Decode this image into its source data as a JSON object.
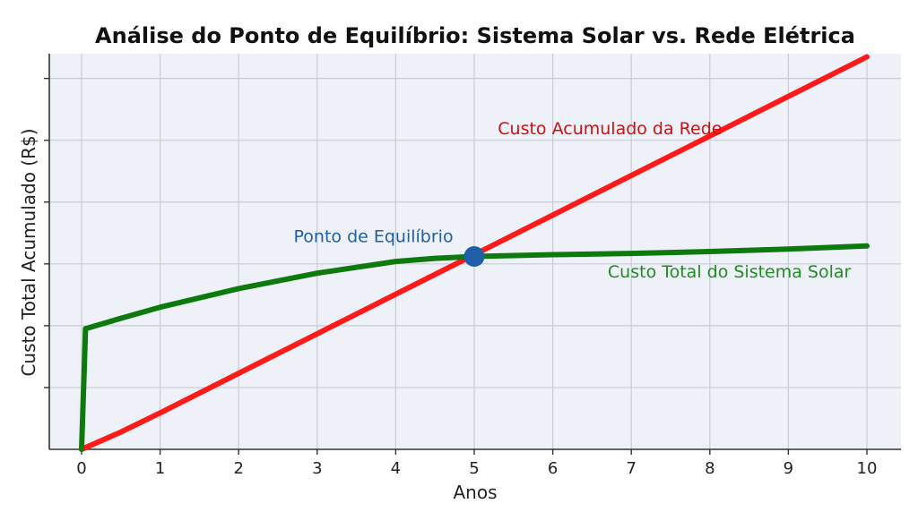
{
  "chart_data": {
    "type": "line",
    "title": "Análise do Ponto de Equilíbrio: Sistema Solar vs. Rede Elétrica",
    "xlabel": "Anos",
    "ylabel": "Custo Total Acumulado (R$)",
    "xlim": [
      0,
      10
    ],
    "ylim": [
      0,
      6.4
    ],
    "x_ticks": [
      "0",
      "1",
      "2",
      "3",
      "4",
      "5",
      "6",
      "7",
      "8",
      "9",
      "10"
    ],
    "grid": true,
    "series": [
      {
        "name": "Custo Acumulado da Rede",
        "color": "#ff1a1a",
        "x": [
          0,
          0.5,
          1,
          2,
          3,
          4,
          5,
          6,
          7,
          8,
          9,
          10
        ],
        "y": [
          0,
          0.28,
          0.59,
          1.23,
          1.87,
          2.51,
          3.15,
          3.79,
          4.43,
          5.07,
          5.71,
          6.35
        ]
      },
      {
        "name": "Custo Total do Sistema Solar",
        "color": "#0d7a0d",
        "x": [
          0,
          0.05,
          0.5,
          1,
          2,
          3,
          4,
          4.5,
          5,
          6,
          7,
          8,
          9,
          10
        ],
        "y": [
          0,
          1.95,
          2.12,
          2.3,
          2.6,
          2.85,
          3.04,
          3.09,
          3.12,
          3.15,
          3.17,
          3.2,
          3.24,
          3.29
        ]
      }
    ],
    "annotations": [
      {
        "text": "Custo Acumulado da Rede",
        "color": "#cc1111",
        "x": 5.3,
        "y": 5.1
      },
      {
        "text": "Ponto de Equilíbrio",
        "color": "#1f5fa8",
        "x": 2.7,
        "y": 3.35
      },
      {
        "text": "Custo Total do Sistema Solar",
        "color": "#228b22",
        "x": 6.7,
        "y": 2.78
      }
    ],
    "break_even": {
      "x": 5,
      "y": 3.12,
      "color": "#1f5fa8"
    }
  }
}
